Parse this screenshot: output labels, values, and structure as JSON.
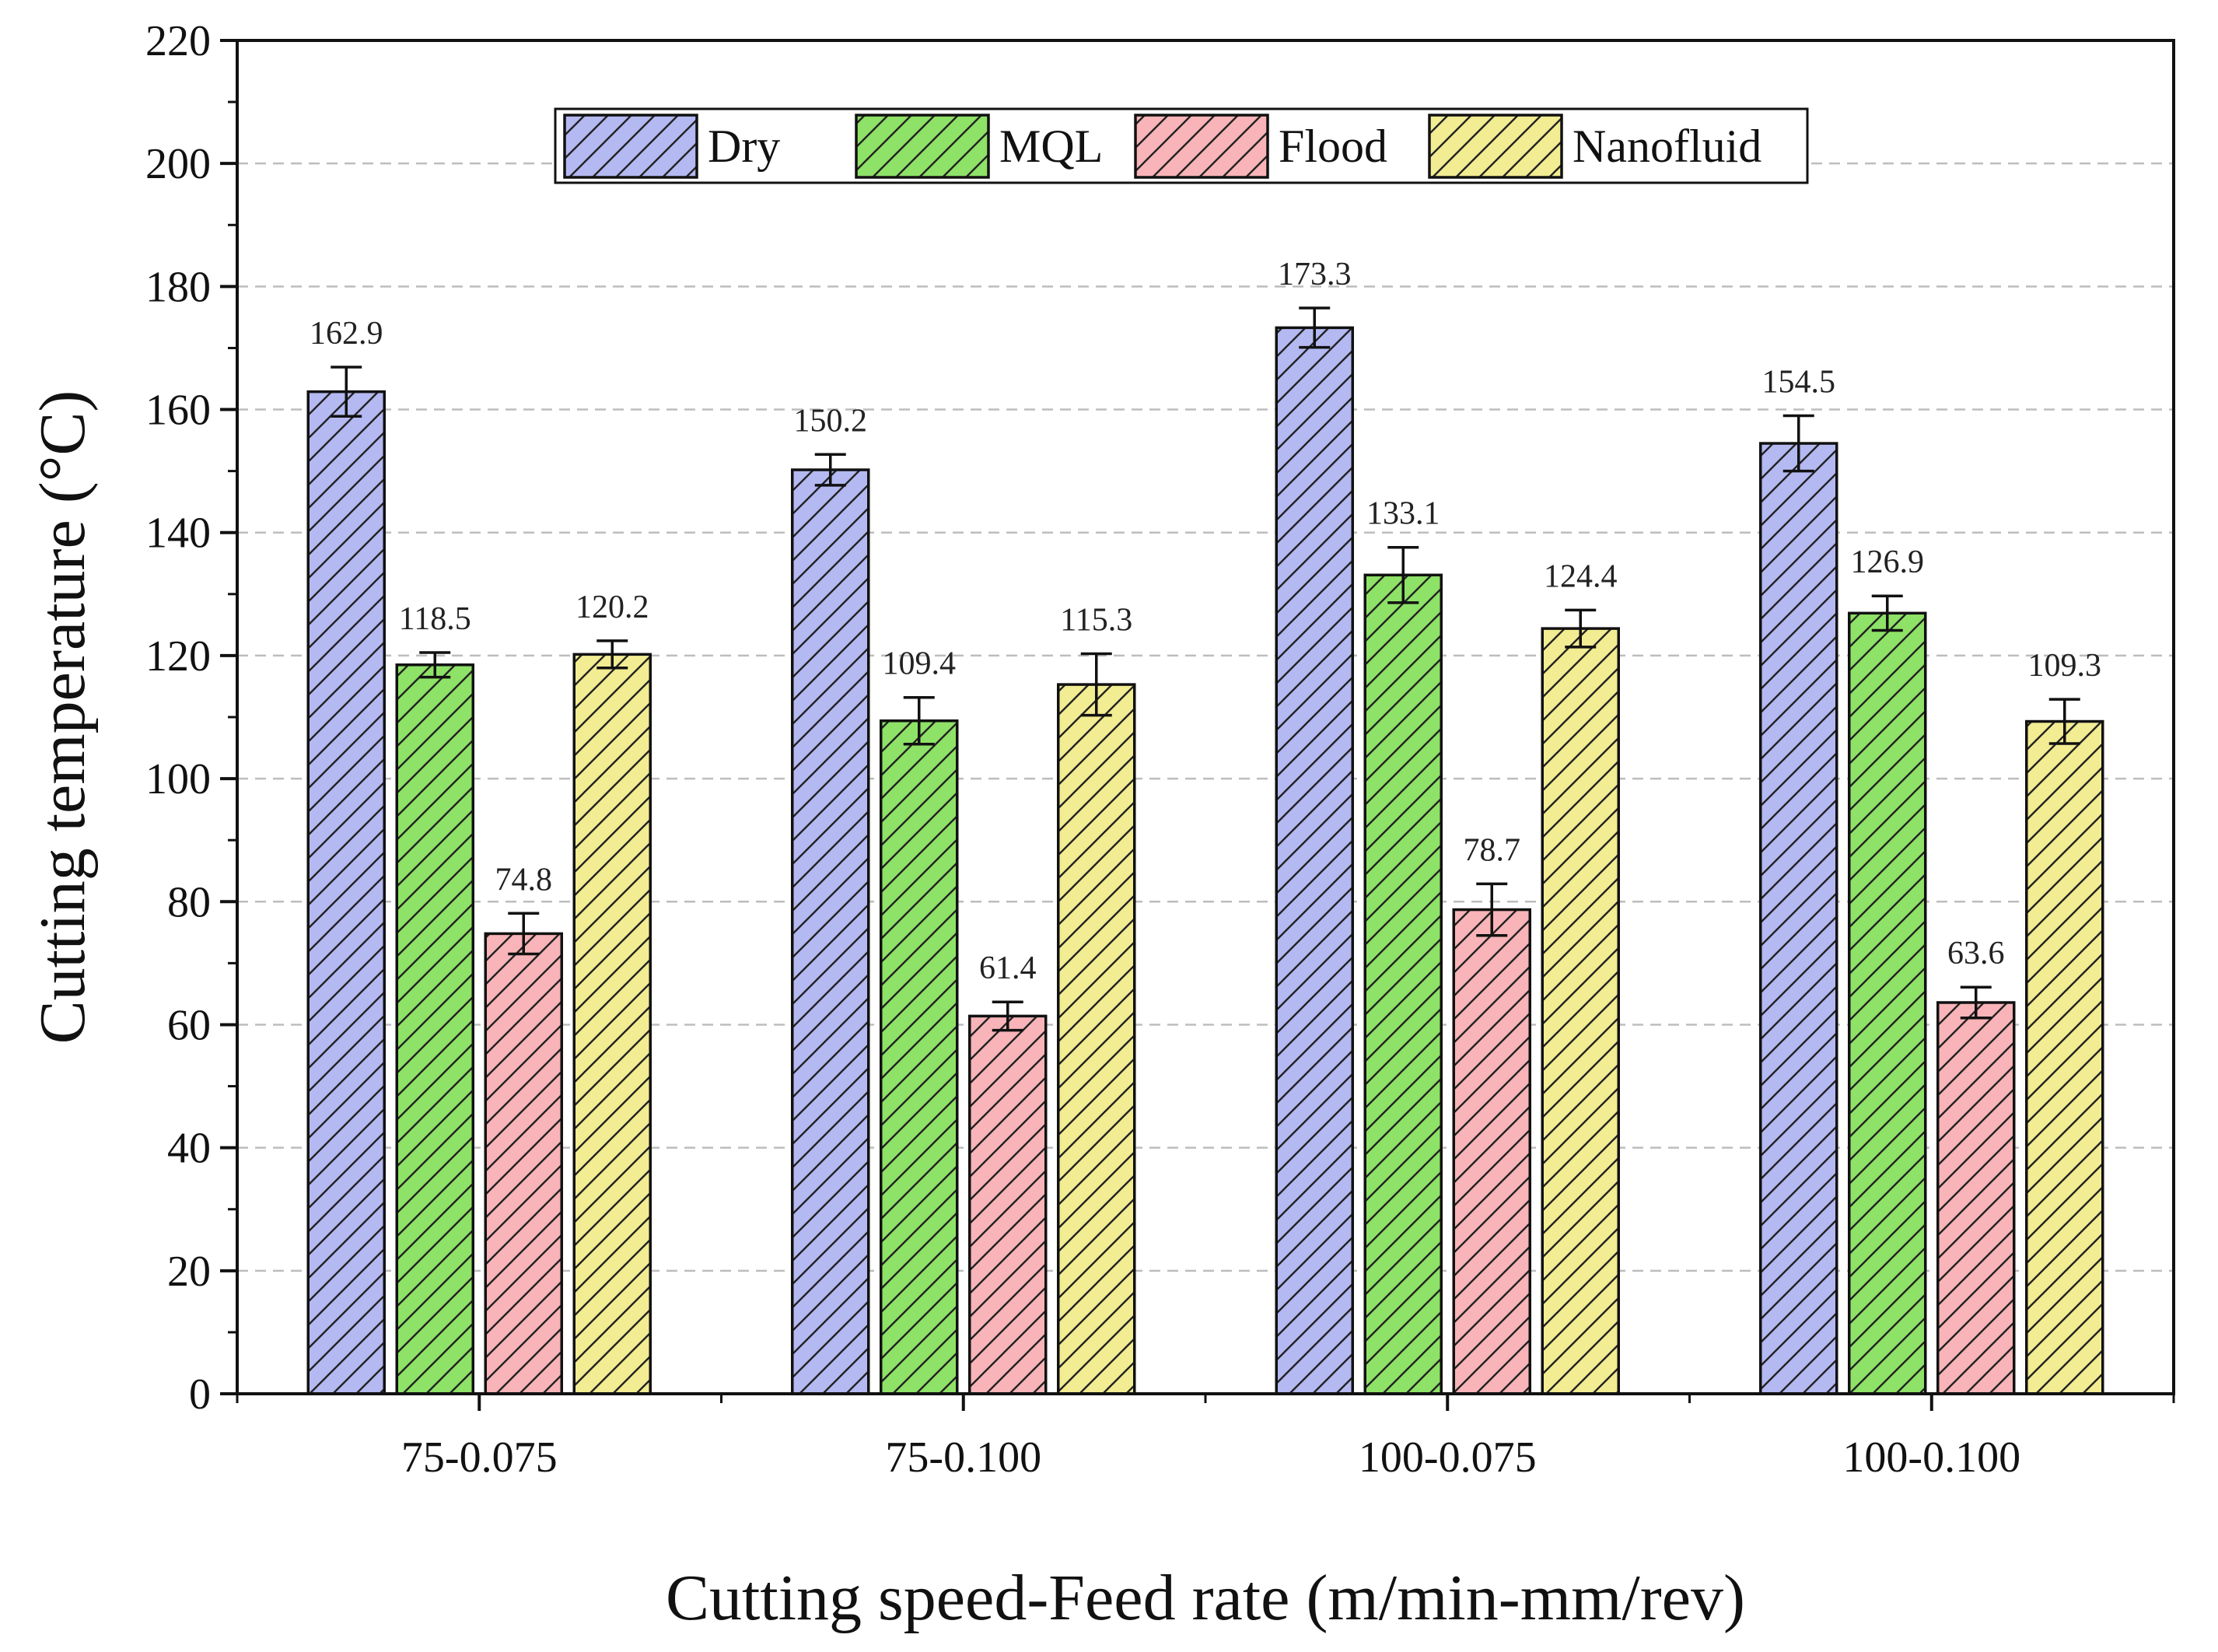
{
  "chart_data": {
    "type": "bar",
    "title": "",
    "xlabel": "Cutting speed-Feed rate (m/min-mm/rev)",
    "ylabel": "Cutting temperature (°C)",
    "ylim": [
      0,
      220
    ],
    "yticks": [
      "0",
      "20",
      "40",
      "60",
      "80",
      "100",
      "120",
      "140",
      "160",
      "180",
      "200",
      "220"
    ],
    "grid": "horizontal-dashed",
    "legend_position": "top-center",
    "categories": [
      "75-0.075",
      "75-0.100",
      "100-0.075",
      "100-0.100"
    ],
    "series": [
      {
        "name": "Dry",
        "color": "#b4b9f2",
        "values": [
          162.9,
          150.2,
          173.3,
          154.5
        ],
        "labels": [
          "162.9",
          "150.2",
          "173.3",
          "154.5"
        ],
        "errors": [
          4.0,
          2.5,
          3.2,
          4.5
        ]
      },
      {
        "name": "MQL",
        "color": "#8ee267",
        "values": [
          118.5,
          109.4,
          133.1,
          126.9
        ],
        "labels": [
          "118.5",
          "109.4",
          "133.1",
          "126.9"
        ],
        "errors": [
          2.0,
          3.8,
          4.5,
          2.8
        ]
      },
      {
        "name": "Flood",
        "color": "#f8b4b8",
        "values": [
          74.8,
          61.4,
          78.7,
          63.6
        ],
        "labels": [
          "74.8",
          "61.4",
          "78.7",
          "63.6"
        ],
        "errors": [
          3.3,
          2.3,
          4.2,
          2.5
        ]
      },
      {
        "name": "Nanofluid",
        "color": "#f2ec92",
        "values": [
          120.2,
          115.3,
          124.4,
          109.3
        ],
        "labels": [
          "120.2",
          "115.3",
          "124.4",
          "109.3"
        ],
        "errors": [
          2.2,
          5.0,
          3.0,
          3.6
        ]
      }
    ]
  }
}
